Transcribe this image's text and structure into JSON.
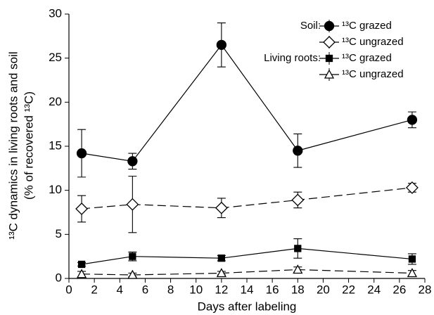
{
  "chart_data": {
    "type": "line",
    "x_label": "Days after labeling",
    "y_label": [
      "¹³C dynamics in living roots and soil",
      "(% of recovered ¹³C)"
    ],
    "x": [
      1,
      5,
      12,
      18,
      27
    ],
    "series": [
      {
        "name": "¹³C grazed",
        "group": "Soil:",
        "color": "#000000",
        "marker": "circle",
        "filled": true,
        "dashed": false,
        "values": [
          14.2,
          13.3,
          26.5,
          14.5,
          18.0
        ],
        "errors": [
          2.7,
          0.9,
          2.5,
          1.9,
          0.9
        ]
      },
      {
        "name": "¹³C ungrazed",
        "color": "#000000",
        "marker": "diamond",
        "filled": false,
        "dashed": true,
        "values": [
          7.9,
          8.4,
          8.0,
          8.9,
          10.3
        ],
        "errors": [
          1.5,
          3.2,
          1.1,
          0.9,
          0.5
        ]
      },
      {
        "name": "¹³C grazed",
        "group": "Living roots:",
        "color": "#000000",
        "marker": "square",
        "filled": true,
        "dashed": false,
        "values": [
          1.6,
          2.5,
          2.3,
          3.4,
          2.2
        ],
        "errors": [
          0.2,
          0.5,
          0.3,
          1.1,
          0.6
        ]
      },
      {
        "name": "¹³C ungrazed",
        "color": "#000000",
        "marker": "triangle",
        "filled": false,
        "dashed": true,
        "values": [
          0.5,
          0.4,
          0.6,
          1.0,
          0.6
        ],
        "errors": [
          0.3,
          0.2,
          0.2,
          0.3,
          0.3
        ]
      }
    ],
    "xlim": [
      0,
      28
    ],
    "xticks": [
      0,
      2,
      4,
      6,
      8,
      10,
      12,
      14,
      16,
      18,
      20,
      22,
      24,
      26,
      28
    ],
    "ylim": [
      0,
      30
    ],
    "yticks": [
      0,
      5,
      10,
      15,
      20,
      25,
      30
    ],
    "grid": false,
    "legend": "upper right"
  }
}
